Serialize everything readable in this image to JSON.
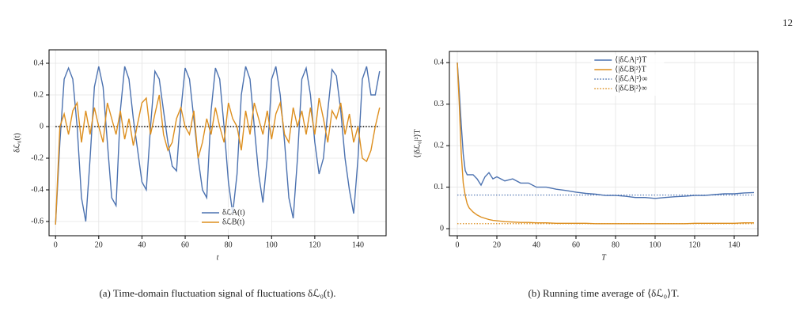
{
  "page_number": "12",
  "chart_data": [
    {
      "type": "line",
      "caption": "(a) Time-domain fluctuation signal of fluctuations δℒ₀(t).",
      "xlabel": "t",
      "ylabel": "δℒ₀(t)",
      "x": [
        0,
        2,
        4,
        6,
        8,
        10,
        12,
        14,
        16,
        18,
        20,
        22,
        24,
        26,
        28,
        30,
        32,
        34,
        36,
        38,
        40,
        42,
        44,
        46,
        48,
        50,
        52,
        54,
        56,
        58,
        60,
        62,
        64,
        66,
        68,
        70,
        72,
        74,
        76,
        78,
        80,
        82,
        84,
        86,
        88,
        90,
        92,
        94,
        96,
        98,
        100,
        102,
        104,
        106,
        108,
        110,
        112,
        114,
        116,
        118,
        120,
        122,
        124,
        126,
        128,
        130,
        132,
        134,
        136,
        138,
        140,
        142,
        144,
        146,
        148,
        150
      ],
      "series": [
        {
          "name": "δℒA(t)",
          "color": "#4c72b0",
          "values": [
            -0.62,
            -0.1,
            0.3,
            0.37,
            0.3,
            0.0,
            -0.45,
            -0.6,
            -0.2,
            0.25,
            0.38,
            0.25,
            -0.1,
            -0.45,
            -0.5,
            0.1,
            0.38,
            0.3,
            0.05,
            -0.15,
            -0.35,
            -0.4,
            0.0,
            0.35,
            0.3,
            0.1,
            -0.1,
            -0.25,
            -0.28,
            0.1,
            0.37,
            0.3,
            0.05,
            -0.2,
            -0.4,
            -0.45,
            0.1,
            0.37,
            0.3,
            0.0,
            -0.35,
            -0.55,
            -0.3,
            0.2,
            0.38,
            0.3,
            0.0,
            -0.3,
            -0.48,
            -0.2,
            0.3,
            0.38,
            0.2,
            -0.1,
            -0.45,
            -0.58,
            -0.2,
            0.3,
            0.37,
            0.2,
            -0.1,
            -0.3,
            -0.2,
            0.1,
            0.36,
            0.32,
            0.1,
            -0.2,
            -0.4,
            -0.55,
            -0.2,
            0.3,
            0.38,
            0.2,
            0.2,
            0.35
          ]
        },
        {
          "name": "δℒB(t)",
          "color": "#dd8f1f",
          "values": [
            -0.62,
            0.0,
            0.08,
            -0.05,
            0.1,
            0.15,
            -0.1,
            0.1,
            -0.05,
            0.12,
            0.0,
            -0.1,
            0.15,
            0.05,
            -0.05,
            0.1,
            -0.08,
            0.05,
            -0.12,
            0.02,
            0.15,
            0.18,
            -0.05,
            0.08,
            0.2,
            -0.05,
            -0.15,
            -0.1,
            0.05,
            0.12,
            0.0,
            -0.05,
            0.1,
            -0.2,
            -0.1,
            0.05,
            -0.05,
            0.12,
            0.0,
            -0.1,
            0.15,
            0.05,
            0.0,
            -0.15,
            0.1,
            -0.05,
            0.15,
            0.05,
            -0.05,
            0.1,
            -0.08,
            0.08,
            0.15,
            -0.05,
            -0.1,
            0.12,
            0.0,
            0.1,
            -0.05,
            0.12,
            -0.05,
            0.18,
            0.05,
            -0.1,
            0.1,
            0.05,
            0.15,
            -0.05,
            0.08,
            -0.1,
            0.0,
            -0.2,
            -0.22,
            -0.15,
            0.0,
            0.12
          ]
        }
      ],
      "hlines": [
        {
          "value": 0,
          "color": "#000000"
        }
      ],
      "xlim": [
        -3,
        153
      ],
      "ylim": [
        -0.69,
        0.485
      ],
      "xticks": [
        0,
        20,
        40,
        60,
        80,
        100,
        120,
        140
      ],
      "yticks": [
        -0.6,
        -0.4,
        -0.2,
        0,
        0.2,
        0.4
      ],
      "grid": true,
      "legend": "lower center"
    },
    {
      "type": "line",
      "caption": "(b) Running time average of ⟨δℒ₀⟩T.",
      "xlabel": "T",
      "ylabel": "⟨|δℒ₀|²⟩T",
      "x": [
        0,
        1,
        2,
        3,
        4,
        5,
        6,
        8,
        10,
        12,
        14,
        16,
        18,
        20,
        24,
        28,
        32,
        36,
        40,
        45,
        50,
        55,
        60,
        65,
        70,
        75,
        80,
        85,
        90,
        95,
        100,
        105,
        110,
        115,
        120,
        125,
        130,
        135,
        140,
        145,
        150
      ],
      "series": [
        {
          "name": "⟨|δℒA|²⟩T",
          "color": "#4c72b0",
          "values": [
            0.4,
            0.33,
            0.25,
            0.18,
            0.14,
            0.13,
            0.13,
            0.13,
            0.12,
            0.105,
            0.125,
            0.135,
            0.12,
            0.125,
            0.115,
            0.12,
            0.11,
            0.11,
            0.1,
            0.1,
            0.095,
            0.092,
            0.088,
            0.085,
            0.083,
            0.08,
            0.08,
            0.078,
            0.075,
            0.075,
            0.073,
            0.075,
            0.077,
            0.078,
            0.08,
            0.08,
            0.082,
            0.084,
            0.084,
            0.086,
            0.087
          ]
        },
        {
          "name": "⟨|δℒB|²⟩T",
          "color": "#dd8f1f",
          "values": [
            0.4,
            0.3,
            0.18,
            0.11,
            0.08,
            0.06,
            0.05,
            0.04,
            0.033,
            0.028,
            0.025,
            0.022,
            0.02,
            0.019,
            0.017,
            0.016,
            0.015,
            0.015,
            0.014,
            0.014,
            0.013,
            0.013,
            0.013,
            0.013,
            0.012,
            0.012,
            0.012,
            0.012,
            0.012,
            0.012,
            0.012,
            0.012,
            0.012,
            0.012,
            0.013,
            0.013,
            0.013,
            0.013,
            0.013,
            0.014,
            0.014
          ]
        },
        {
          "name": "⟨|δℒA|²⟩∞",
          "color": "#4c72b0",
          "style": "dotted",
          "value": 0.081
        },
        {
          "name": "⟨|δℒB|²⟩∞",
          "color": "#dd8f1f",
          "style": "dotted",
          "value": 0.012
        }
      ],
      "xlim": [
        -4,
        152
      ],
      "ylim": [
        -0.017,
        0.427
      ],
      "xticks": [
        0,
        20,
        40,
        60,
        80,
        100,
        120,
        140
      ],
      "yticks": [
        0,
        0.1,
        0.2,
        0.3,
        0.4
      ],
      "grid": true,
      "legend": "upper right"
    }
  ]
}
